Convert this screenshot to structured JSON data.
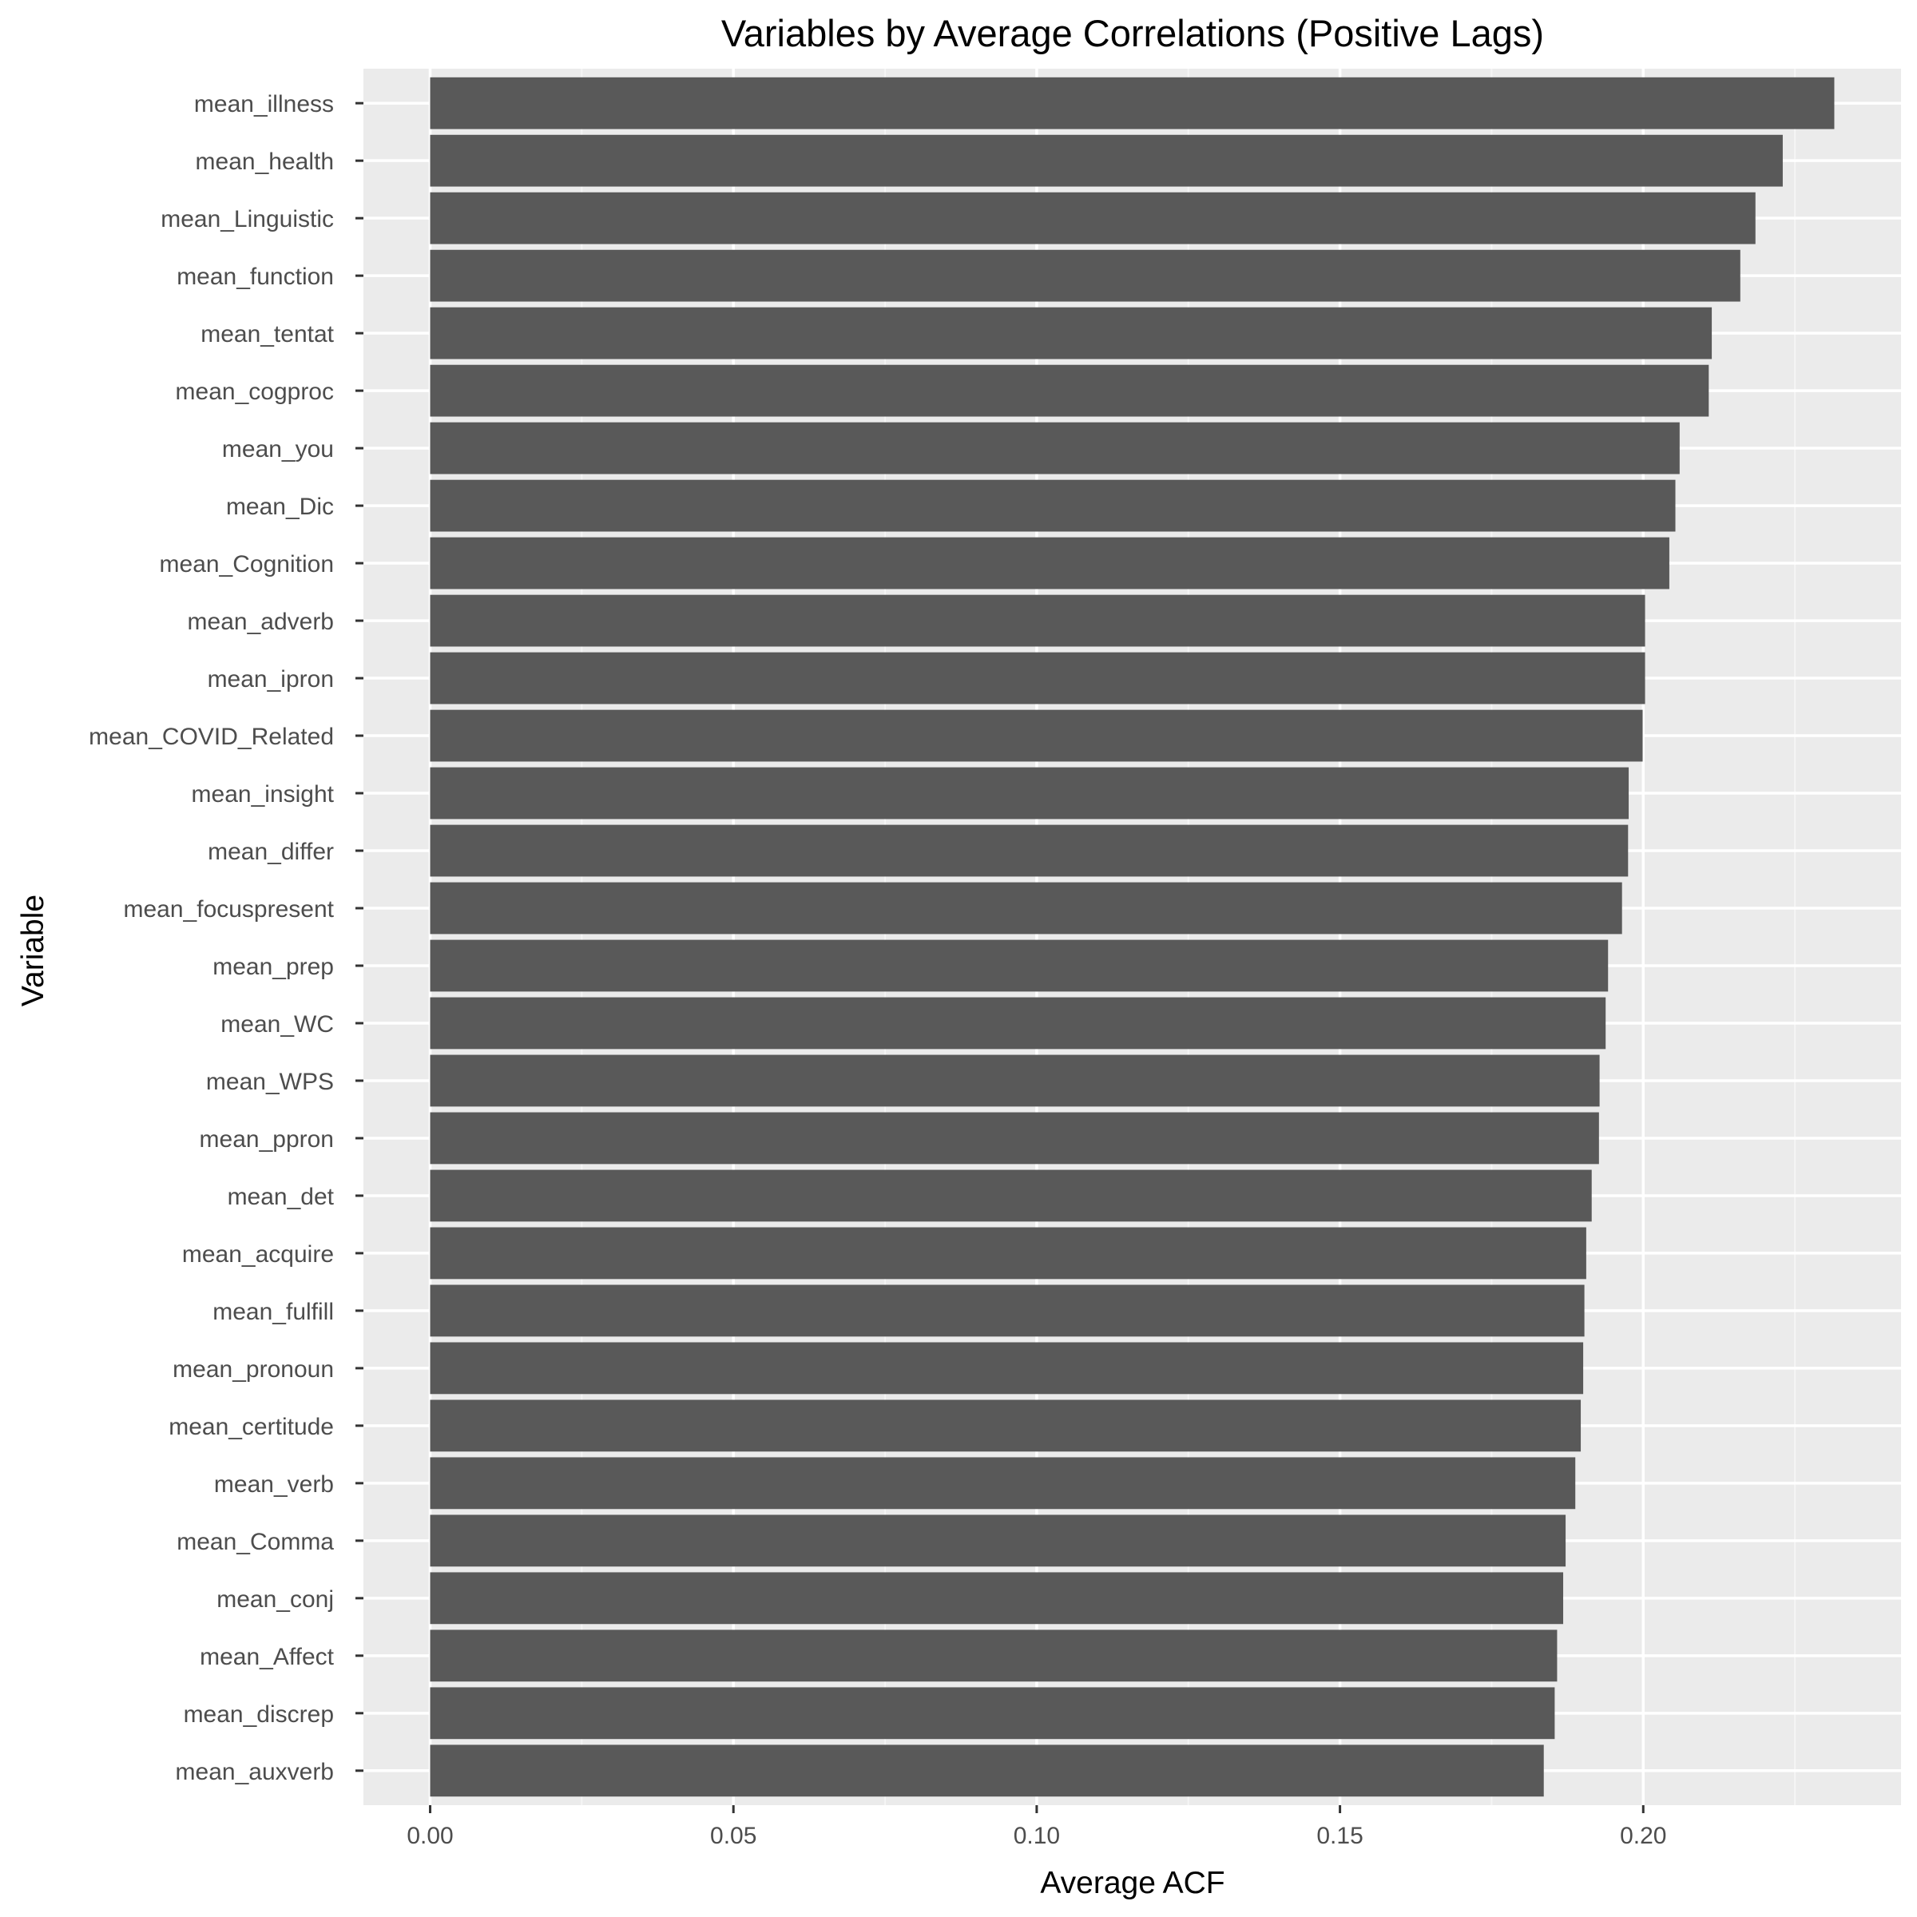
{
  "chart_data": {
    "type": "bar",
    "orientation": "horizontal",
    "title": "Variables by Average Correlations (Positive Lags)",
    "xlabel": "Average ACF",
    "ylabel": "Variable",
    "xlim": [
      -0.011,
      0.2425
    ],
    "x_ticks": [
      0.0,
      0.05,
      0.1,
      0.15,
      0.2
    ],
    "x_tick_labels": [
      "0.00",
      "0.05",
      "0.10",
      "0.15",
      "0.20"
    ],
    "grid": true,
    "legend": "none",
    "categories": [
      "mean_illness",
      "mean_health",
      "mean_Linguistic",
      "mean_function",
      "mean_tentat",
      "mean_cogproc",
      "mean_you",
      "mean_Dic",
      "mean_Cognition",
      "mean_adverb",
      "mean_ipron",
      "mean_COVID_Related",
      "mean_insight",
      "mean_differ",
      "mean_focuspresent",
      "mean_prep",
      "mean_WC",
      "mean_WPS",
      "mean_ppron",
      "mean_det",
      "mean_acquire",
      "mean_fulfill",
      "mean_pronoun",
      "mean_certitude",
      "mean_verb",
      "mean_Comma",
      "mean_conj",
      "mean_Affect",
      "mean_discrep",
      "mean_auxverb"
    ],
    "values": [
      0.2315,
      0.223,
      0.2185,
      0.216,
      0.2113,
      0.2108,
      0.206,
      0.2053,
      0.2043,
      0.2003,
      0.2003,
      0.1999,
      0.1976,
      0.1975,
      0.1965,
      0.1942,
      0.1938,
      0.1928,
      0.1927,
      0.1915,
      0.1906,
      0.1903,
      0.1901,
      0.1897,
      0.1888,
      0.1872,
      0.1868,
      0.1858,
      0.1854,
      0.1836
    ],
    "colors": {
      "bar": "#595959",
      "panel_background": "#ebebeb",
      "grid_major": "#ffffff",
      "grid_minor": "#f5f5f5",
      "tick_text": "#4d4d4d",
      "axis_tick": "#333333",
      "title_text": "#000000"
    }
  }
}
